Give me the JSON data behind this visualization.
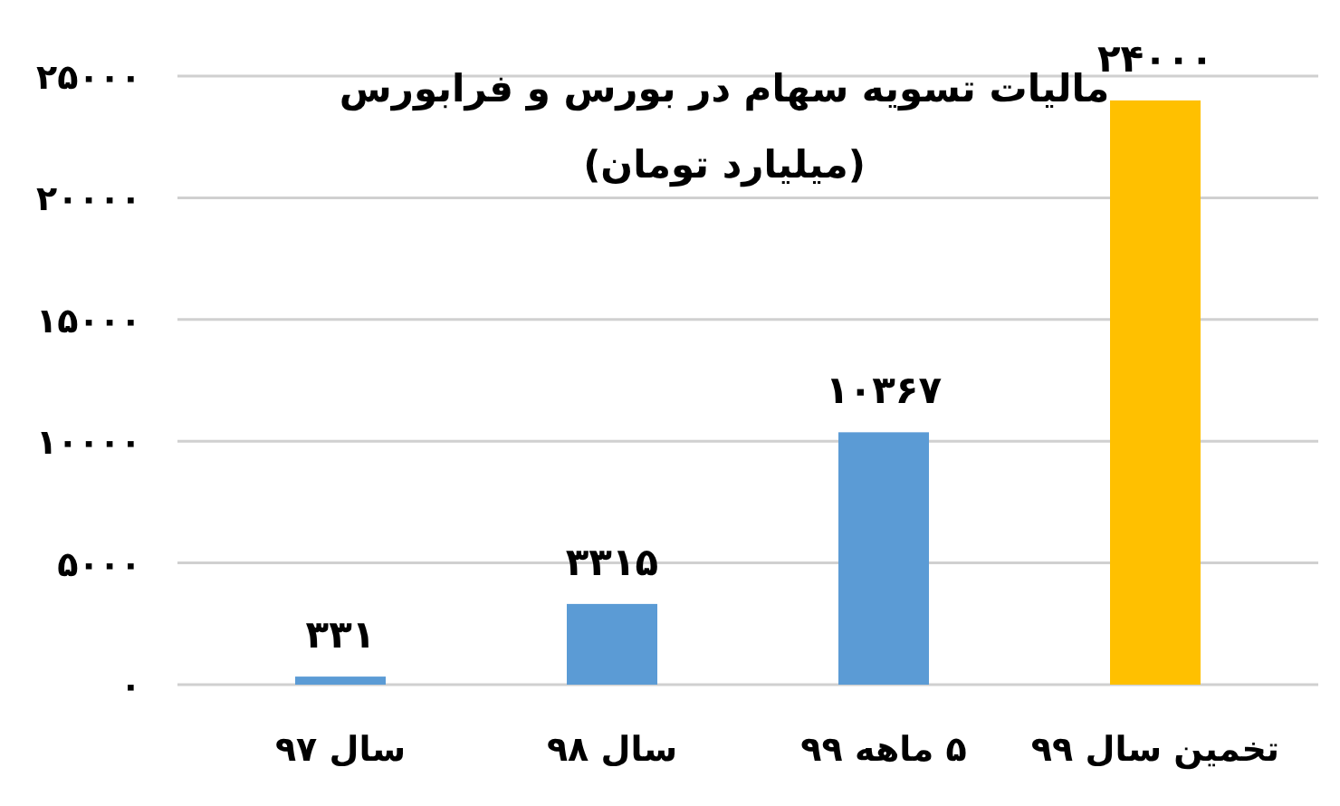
{
  "chart_data": {
    "type": "bar",
    "title": "مالیات تسویه سهام در بورس و فرابورس",
    "subtitle": "(میلیارد تومان)",
    "categories": [
      "سال ۹۷",
      "سال ۹۸",
      "۵ ماهه ۹۹",
      "تخمین سال ۹۹"
    ],
    "values": [
      331,
      3315,
      10367,
      24000
    ],
    "colors": [
      "#5b9bd5",
      "#5b9bd5",
      "#5b9bd5",
      "#ffc000"
    ],
    "value_labels": [
      "۳۳۱",
      "۳۳۱۵",
      "۱۰۳۶۷",
      "۲۴۰۰۰"
    ],
    "ylim": [
      0,
      25000
    ],
    "yticks": [
      {
        "value": 0,
        "label": "۰"
      },
      {
        "value": 5000,
        "label": "۵۰۰۰"
      },
      {
        "value": 10000,
        "label": "۱۰۰۰۰"
      },
      {
        "value": 15000,
        "label": "۱۵۰۰۰"
      },
      {
        "value": 20000,
        "label": "۲۰۰۰۰"
      },
      {
        "value": 25000,
        "label": "۲۵۰۰۰"
      }
    ],
    "grid": "y"
  }
}
